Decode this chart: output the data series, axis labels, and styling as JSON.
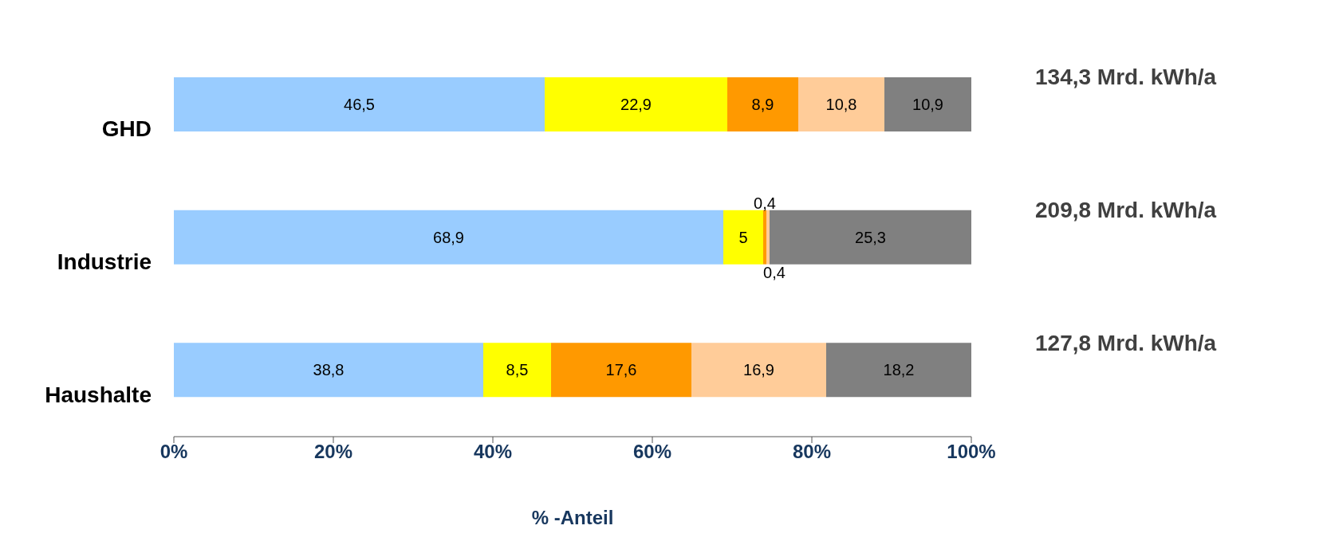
{
  "chart_data": {
    "type": "bar",
    "orientation": "horizontal",
    "stacked": true,
    "xlabel": "% -Anteil",
    "categories": [
      "GHD",
      "Industrie",
      "Haushalte"
    ],
    "series": [
      {
        "color": "#99ccff",
        "values": [
          46.5,
          68.9,
          38.8
        ],
        "value_labels": [
          "46,5",
          "68,9",
          "38,8"
        ]
      },
      {
        "color": "#ffff00",
        "values": [
          22.9,
          5,
          8.5
        ],
        "value_labels": [
          "22,9",
          "5",
          "8,5"
        ]
      },
      {
        "color": "#ff9900",
        "values": [
          8.9,
          0.4,
          17.6
        ],
        "value_labels": [
          "8,9",
          "0,4",
          "17,6"
        ]
      },
      {
        "color": "#ffcc99",
        "values": [
          10.8,
          0.4,
          16.9
        ],
        "value_labels": [
          "10,8",
          "0,4",
          "16,9"
        ]
      },
      {
        "color": "#808080",
        "values": [
          10.9,
          25.3,
          18.2
        ],
        "value_labels": [
          "10,9",
          "25,3",
          "18,2"
        ]
      }
    ],
    "xlim": [
      0,
      100
    ],
    "xticks": [
      {
        "value": 0,
        "label": "0%"
      },
      {
        "value": 20,
        "label": "20%"
      },
      {
        "value": 40,
        "label": "40%"
      },
      {
        "value": 60,
        "label": "60%"
      },
      {
        "value": 80,
        "label": "80%"
      },
      {
        "value": 100,
        "label": "100%"
      }
    ],
    "grid": false,
    "legend": false,
    "annotations": [
      "134,3 Mrd. kWh/a",
      "209,8 Mrd. kWh/a",
      "127,8 Mrd. kWh/a"
    ]
  }
}
